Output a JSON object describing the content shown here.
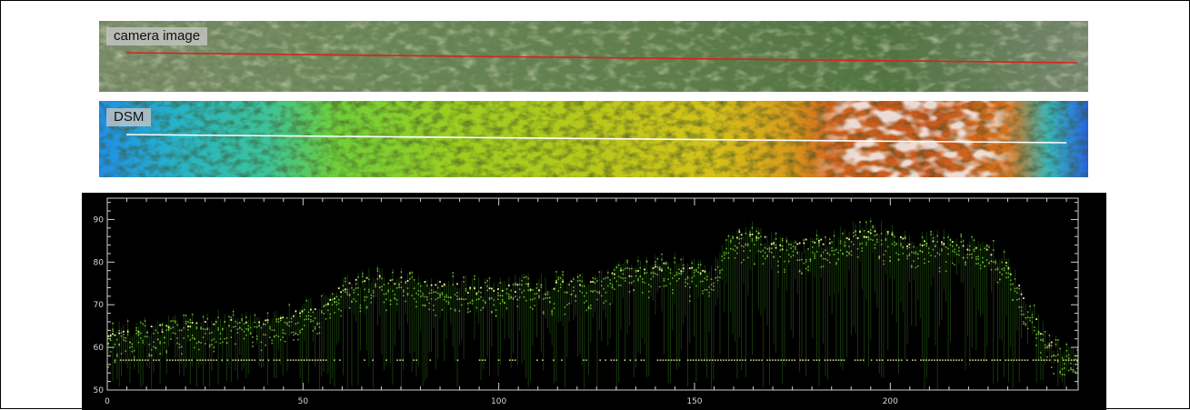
{
  "camera": {
    "label": "camera image"
  },
  "dsm": {
    "label": "DSM"
  },
  "chart_data": {
    "type": "scatter",
    "title": "",
    "xlabel": "",
    "ylabel": "",
    "xlim": [
      0,
      248
    ],
    "ylim": [
      50,
      95
    ],
    "x_ticks": [
      0,
      50,
      100,
      150,
      200
    ],
    "y_ticks": [
      50,
      60,
      70,
      80,
      90
    ],
    "x_tick_labels": [
      "0",
      "50",
      "100",
      "150",
      "200"
    ],
    "y_tick_labels": [
      "50",
      "60",
      "70",
      "80",
      "90"
    ],
    "background": "#000000",
    "point_color": "#7fd63a",
    "highlight_color": "#f2f59a",
    "canopy_profile": {
      "x": [
        0,
        5,
        10,
        15,
        20,
        25,
        30,
        35,
        40,
        45,
        50,
        55,
        60,
        65,
        70,
        75,
        80,
        85,
        90,
        95,
        100,
        105,
        110,
        115,
        120,
        125,
        130,
        135,
        140,
        145,
        150,
        155,
        160,
        165,
        170,
        175,
        180,
        185,
        190,
        195,
        200,
        205,
        210,
        215,
        220,
        225,
        230,
        235,
        240,
        245
      ],
      "y": [
        63,
        64.5,
        65,
        65.5,
        66,
        66.5,
        67,
        67,
        67.5,
        68,
        69,
        70,
        75,
        76.5,
        77,
        76.5,
        76,
        75.5,
        75,
        74.5,
        74.5,
        75,
        75,
        75.5,
        76,
        77,
        78,
        79,
        79.5,
        80,
        79,
        78,
        87,
        88,
        85,
        84,
        86,
        85,
        87,
        88,
        87,
        85,
        85,
        86,
        84,
        84,
        80,
        71,
        62,
        59
      ]
    },
    "ground_level": 57
  }
}
